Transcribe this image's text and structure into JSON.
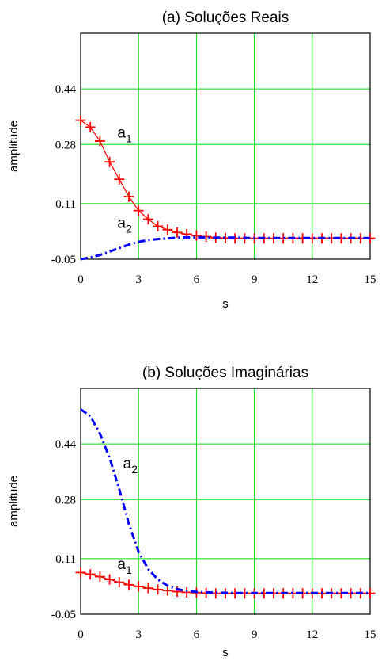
{
  "chart_data": [
    {
      "type": "line",
      "title": "(a) Soluções Reais",
      "xlabel": "s",
      "ylabel": "amplitude",
      "xlim": [
        0,
        15
      ],
      "ylim": [
        -0.05,
        0.6
      ],
      "xticks": [
        0,
        3,
        6,
        9,
        12,
        15
      ],
      "yticks": [
        -0.05,
        0.11,
        0.28,
        0.44
      ],
      "xtick_labels": [
        "0",
        "3",
        "6",
        "9",
        "12",
        15
      ],
      "ytick_labels": [
        "-0.05",
        "0.11",
        "0.28",
        "0.44"
      ],
      "grid": true,
      "grid_color": "#00dd00",
      "series": [
        {
          "name": "a1",
          "style": "plus-markers",
          "color": "#ff0000",
          "x": [
            0,
            0.5,
            1,
            1.5,
            2,
            2.5,
            3,
            3.5,
            4,
            4.5,
            5,
            5.5,
            6,
            6.5,
            7,
            7.5,
            8,
            8.5,
            9,
            9.5,
            10,
            10.5,
            11,
            11.5,
            12,
            12.5,
            13,
            13.5,
            14,
            14.5,
            15
          ],
          "y": [
            0.35,
            0.33,
            0.29,
            0.23,
            0.18,
            0.13,
            0.09,
            0.065,
            0.045,
            0.035,
            0.027,
            0.022,
            0.018,
            0.015,
            0.012,
            0.011,
            0.01,
            0.01,
            0.01,
            0.01,
            0.01,
            0.01,
            0.01,
            0.01,
            0.01,
            0.01,
            0.01,
            0.01,
            0.01,
            0.01,
            0.01
          ]
        },
        {
          "name": "a2",
          "style": "dash-dot",
          "color": "#0000ff",
          "x": [
            0,
            0.5,
            1,
            1.5,
            2,
            2.5,
            3,
            3.5,
            4,
            4.5,
            5,
            5.5,
            6,
            7,
            8,
            9,
            10,
            11,
            12,
            13,
            14,
            15
          ],
          "y": [
            -0.05,
            -0.045,
            -0.038,
            -0.028,
            -0.018,
            -0.008,
            0.0,
            0.005,
            0.008,
            0.01,
            0.012,
            0.013,
            0.013,
            0.012,
            0.012,
            0.011,
            0.011,
            0.011,
            0.011,
            0.011,
            0.011,
            0.011
          ]
        }
      ],
      "annotations": [
        {
          "text": "a",
          "sub": "1",
          "x": 1.9,
          "y": 0.3
        },
        {
          "text": "a",
          "sub": "2",
          "x": 1.9,
          "y": 0.04
        }
      ]
    },
    {
      "type": "line",
      "title": "(b) Soluções Imaginárias",
      "xlabel": "s",
      "ylabel": "amplitude",
      "xlim": [
        0,
        15
      ],
      "ylim": [
        -0.05,
        0.6
      ],
      "xticks": [
        0,
        3,
        6,
        9,
        12,
        15
      ],
      "yticks": [
        -0.05,
        0.11,
        0.28,
        0.44
      ],
      "xtick_labels": [
        "0",
        "3",
        "6",
        "9",
        "12",
        "15"
      ],
      "ytick_labels": [
        "-0.05",
        "0.11",
        "0.28",
        "0.44"
      ],
      "grid": true,
      "grid_color": "#00dd00",
      "series": [
        {
          "name": "a1",
          "style": "plus-markers",
          "color": "#ff0000",
          "x": [
            0,
            0.5,
            1,
            1.5,
            2,
            2.5,
            3,
            3.5,
            4,
            4.5,
            5,
            5.5,
            6,
            6.5,
            7,
            7.5,
            8,
            8.5,
            9,
            9.5,
            10,
            10.5,
            11,
            11.5,
            12,
            12.5,
            13,
            13.5,
            14,
            14.5,
            15
          ],
          "y": [
            0.07,
            0.065,
            0.058,
            0.05,
            0.042,
            0.035,
            0.03,
            0.025,
            0.021,
            0.018,
            0.015,
            0.013,
            0.012,
            0.011,
            0.01,
            0.01,
            0.01,
            0.01,
            0.01,
            0.01,
            0.01,
            0.01,
            0.01,
            0.01,
            0.01,
            0.01,
            0.01,
            0.01,
            0.01,
            0.01,
            0.01
          ]
        },
        {
          "name": "a2",
          "style": "dash-dot",
          "color": "#0000ff",
          "x": [
            0,
            0.5,
            1,
            1.5,
            2,
            2.5,
            3,
            3.5,
            4,
            4.5,
            5,
            5.5,
            6,
            7,
            8,
            9,
            10,
            11,
            12,
            13,
            14,
            15
          ],
          "y": [
            0.54,
            0.52,
            0.47,
            0.4,
            0.31,
            0.21,
            0.13,
            0.08,
            0.05,
            0.032,
            0.022,
            0.017,
            0.014,
            0.012,
            0.011,
            0.011,
            0.011,
            0.011,
            0.011,
            0.011,
            0.011,
            0.011
          ]
        }
      ],
      "annotations": [
        {
          "text": "a",
          "sub": "2",
          "x": 2.2,
          "y": 0.37
        },
        {
          "text": "a",
          "sub": "1",
          "x": 1.9,
          "y": 0.08
        }
      ]
    }
  ]
}
